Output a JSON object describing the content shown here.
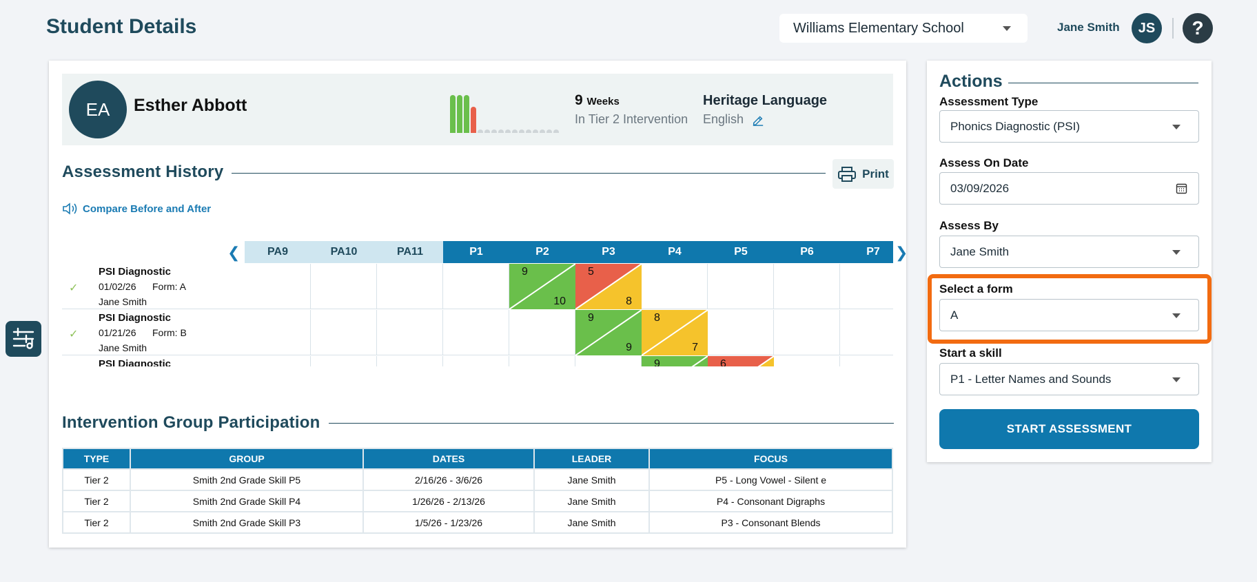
{
  "header": {
    "title": "Student Details",
    "school": "Williams Elementary School",
    "user_name": "Jane Smith",
    "user_initials": "JS",
    "help_glyph": "?"
  },
  "student": {
    "initials": "EA",
    "name": "Esther Abbott",
    "weeks_count": "9",
    "weeks_unit": "Weeks",
    "weeks_sub": "In Tier 2 Intervention",
    "heritage_label": "Heritage Language",
    "heritage_value": "English"
  },
  "assessment_history": {
    "title": "Assessment History",
    "print_label": "Print",
    "compare_label": "Compare Before and After",
    "columns": [
      "PA9",
      "PA10",
      "PA11",
      "P1",
      "P2",
      "P3",
      "P4",
      "P5",
      "P6",
      "P7"
    ],
    "rows": [
      {
        "title": "PSI Diagnostic",
        "date": "01/02/26",
        "form": "Form: A",
        "leader": "Jane Smith"
      },
      {
        "title": "PSI Diagnostic",
        "date": "01/21/26",
        "form": "Form: B",
        "leader": "Jane Smith"
      },
      {
        "title": "PSI Diagnostic",
        "date": "",
        "form": "",
        "leader": ""
      }
    ],
    "scores": [
      {
        "top": "9",
        "bottom": "10"
      },
      {
        "top": "5",
        "bottom": "8"
      },
      {
        "top": "9",
        "bottom": "9"
      },
      {
        "top": "8",
        "bottom": "7"
      },
      {
        "top": "9",
        "bottom": ""
      },
      {
        "top": "6",
        "bottom": ""
      }
    ]
  },
  "participation": {
    "title": "Intervention Group Participation",
    "headers": [
      "TYPE",
      "GROUP",
      "DATES",
      "LEADER",
      "FOCUS"
    ],
    "rows": [
      [
        "Tier 2",
        "Smith 2nd Grade Skill P5",
        "2/16/26 - 3/6/26",
        "Jane Smith",
        "P5 - Long Vowel - Silent e"
      ],
      [
        "Tier 2",
        "Smith 2nd Grade Skill P4",
        "1/26/26 - 2/13/26",
        "Jane Smith",
        "P4 - Consonant Digraphs"
      ],
      [
        "Tier 2",
        "Smith 2nd Grade Skill P3",
        "1/5/26 - 1/23/26",
        "Jane Smith",
        "P3 - Consonant Blends"
      ]
    ]
  },
  "actions": {
    "title": "Actions",
    "assessment_type_label": "Assessment Type",
    "assessment_type_value": "Phonics Diagnostic (PSI)",
    "date_label": "Assess On Date",
    "date_value": "03/09/2026",
    "assess_by_label": "Assess By",
    "assess_by_value": "Jane Smith",
    "form_label": "Select a form",
    "form_value": "A",
    "skill_label": "Start a skill",
    "skill_value": "P1 - Letter Names and Sounds",
    "start_label": "START ASSESSMENT"
  },
  "colors": {
    "green": "#6abf4b",
    "red": "#e8604a",
    "yellow": "#f5c32c",
    "brand": "#1f4a5c",
    "accent": "#0f78ad",
    "highlight": "#f26b11"
  }
}
